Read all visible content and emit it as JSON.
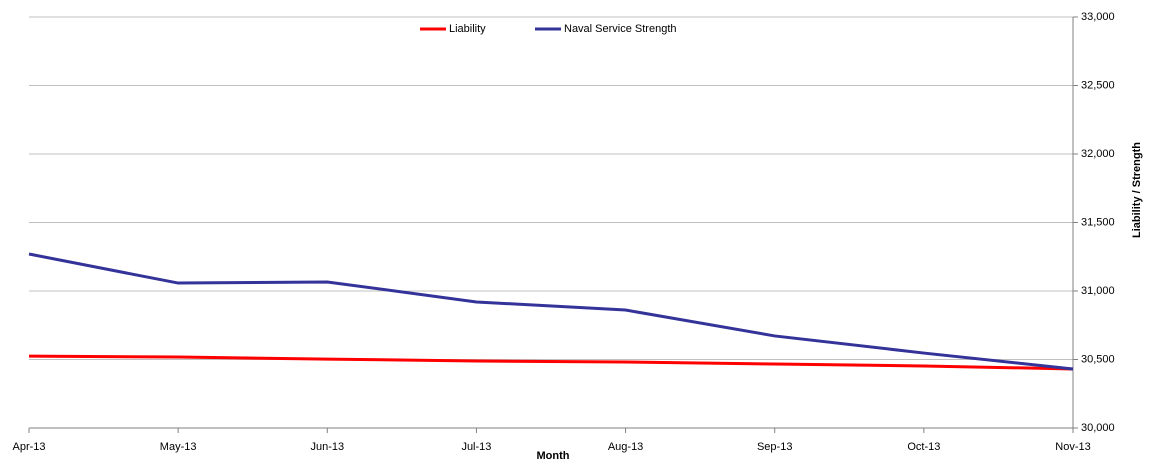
{
  "chart_data": {
    "type": "line",
    "x_label": "Month",
    "y_label": "Liability / Strength",
    "categories": [
      "Apr-13",
      "May-13",
      "Jun-13",
      "Jul-13",
      "Aug-13",
      "Sep-13",
      "Oct-13",
      "Nov-13"
    ],
    "series": [
      {
        "name": "Liability",
        "color": "#ff0000",
        "values": [
          30525,
          30518,
          30503,
          30489,
          30482,
          30467,
          30453,
          30431
        ]
      },
      {
        "name": "Naval Service Strength",
        "color": "#333399",
        "values": [
          31270,
          31058,
          31066,
          30920,
          30861,
          30672,
          30547,
          30431
        ]
      }
    ],
    "ylim": [
      30000,
      33000
    ],
    "yticks": [
      {
        "value": 30000,
        "label": "30,000"
      },
      {
        "value": 30500,
        "label": "30,500"
      },
      {
        "value": 31000,
        "label": "31,000"
      },
      {
        "value": 31500,
        "label": "31,500"
      },
      {
        "value": 32000,
        "label": "32,000"
      },
      {
        "value": 32500,
        "label": "32,500"
      },
      {
        "value": 33000,
        "label": "33,000"
      }
    ],
    "grid": true,
    "legend": "top"
  }
}
